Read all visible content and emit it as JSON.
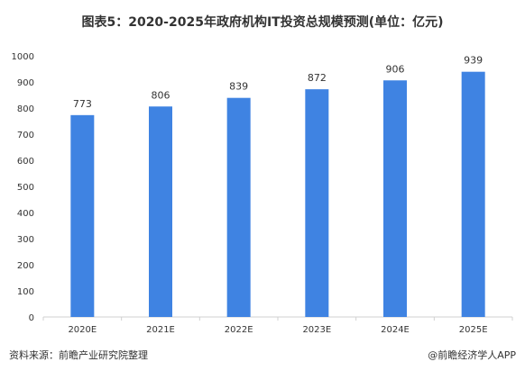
{
  "header": {
    "title": "图表5：2020-2025年政府机构IT投资总规模预测(单位：亿元)"
  },
  "chart_data": {
    "type": "bar",
    "title": "图表5：2020-2025年政府机构IT投资总规模预测(单位：亿元)",
    "categories": [
      "2020E",
      "2021E",
      "2022E",
      "2023E",
      "2024E",
      "2025E"
    ],
    "values": [
      773,
      806,
      839,
      872,
      906,
      939
    ],
    "ylim": [
      0,
      1000
    ],
    "yticks": [
      0,
      100,
      200,
      300,
      400,
      500,
      600,
      700,
      800,
      900,
      1000
    ],
    "grid": false,
    "bar_color": "#3f83e2"
  },
  "footer": {
    "source": "资料来源：前瞻产业研究院整理",
    "brand": "前瞻经济学人APP",
    "brand_icon": "at-sign-icon"
  }
}
